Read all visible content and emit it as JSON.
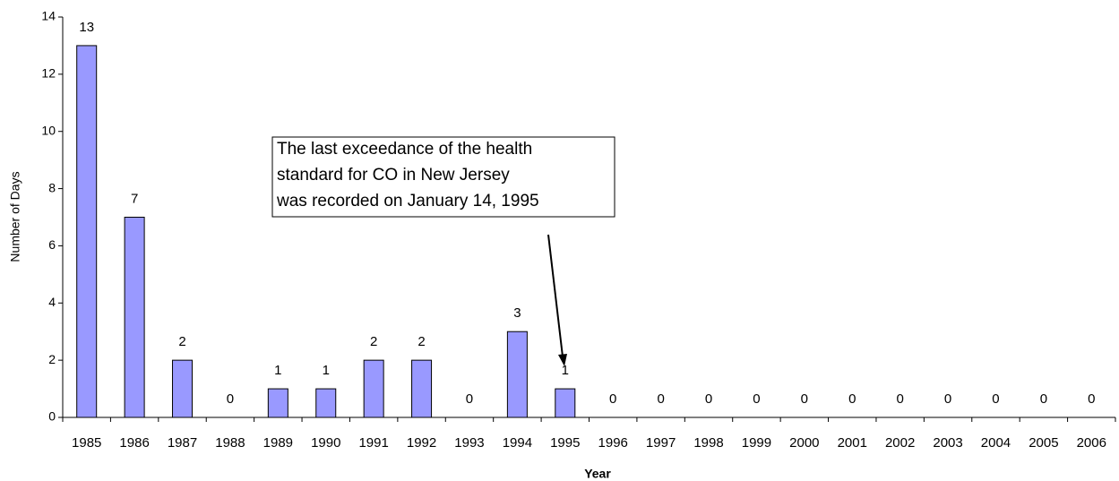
{
  "chart_data": {
    "type": "bar",
    "y_label": "Number of Days",
    "x_label": "Year",
    "categories": [
      "1985",
      "1986",
      "1987",
      "1988",
      "1989",
      "1990",
      "1991",
      "1992",
      "1993",
      "1994",
      "1995",
      "1996",
      "1997",
      "1998",
      "1999",
      "2000",
      "2001",
      "2002",
      "2003",
      "2004",
      "2005",
      "2006"
    ],
    "values": [
      13,
      7,
      2,
      0,
      1,
      1,
      2,
      2,
      0,
      3,
      1,
      0,
      0,
      0,
      0,
      0,
      0,
      0,
      0,
      0,
      0,
      0
    ],
    "color": "#9999ff",
    "ylim": [
      0,
      14
    ],
    "yticks": [
      0,
      2,
      4,
      6,
      8,
      10,
      12,
      14
    ],
    "grid": false,
    "annotation": [
      "The last exceedance of the health",
      "standard for CO in New Jersey",
      "was recorded on January 14, 1995"
    ]
  }
}
